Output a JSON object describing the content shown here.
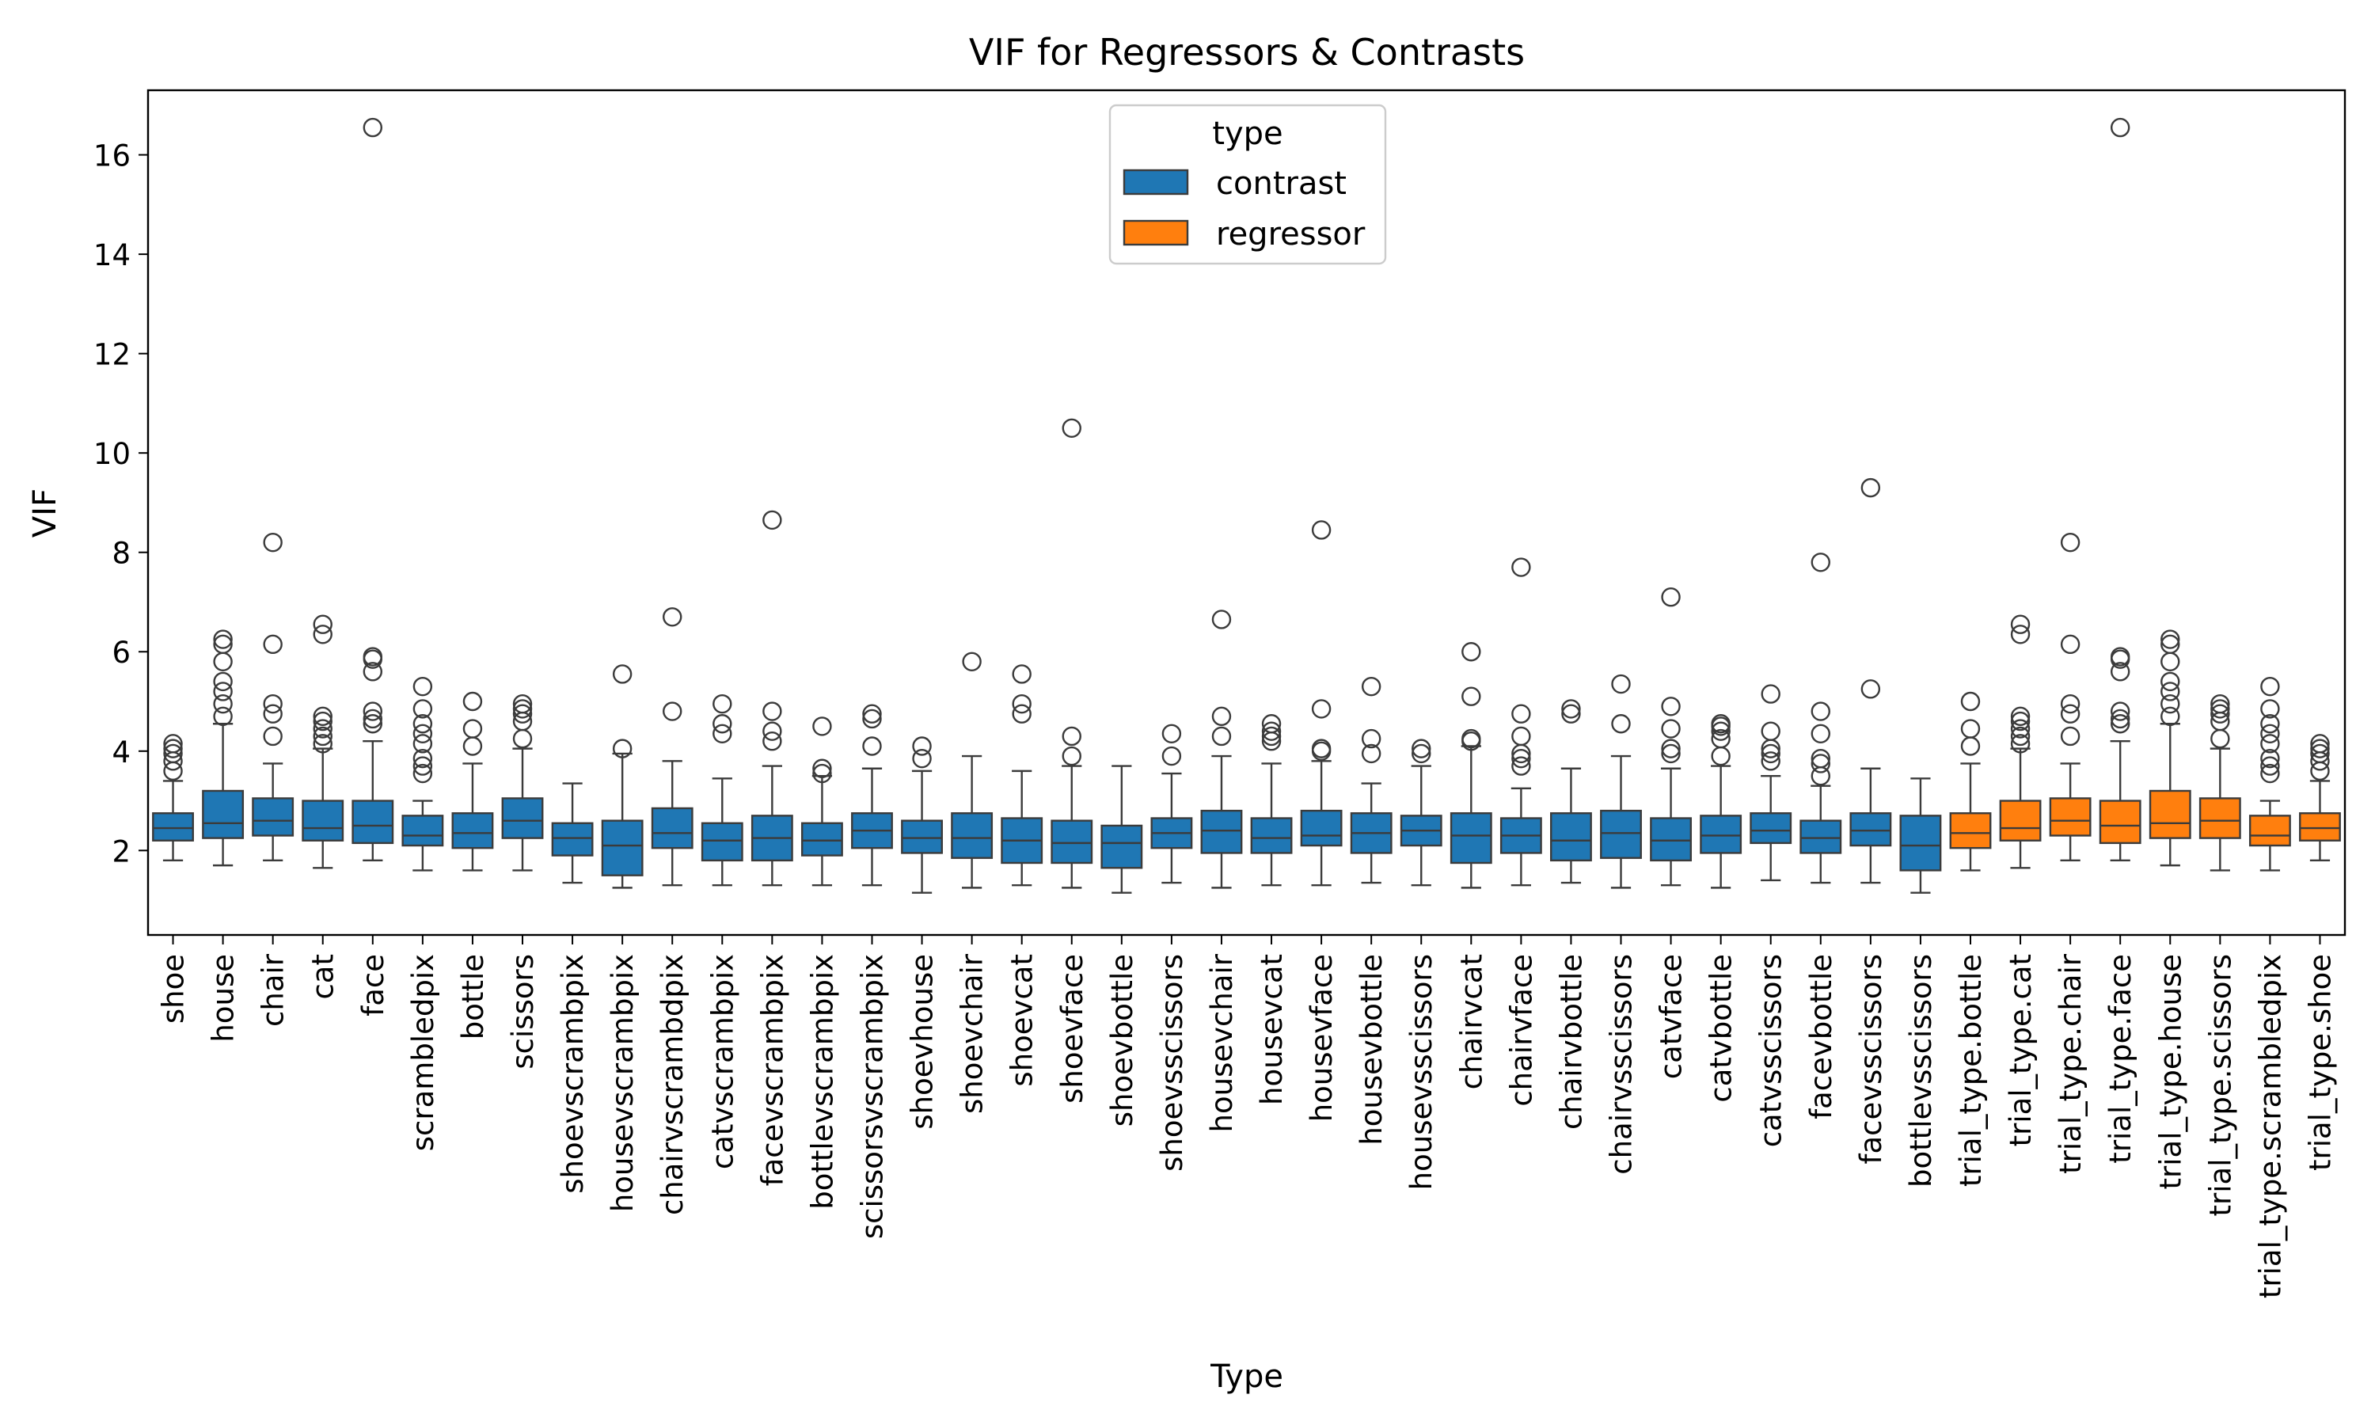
{
  "chart_data": {
    "type": "boxplot",
    "title": "VIF for Regressors & Contrasts",
    "xlabel": "Type",
    "ylabel": "VIF",
    "ylim": [
      0.3,
      17.3
    ],
    "yticks": [
      2,
      4,
      6,
      8,
      10,
      12,
      14,
      16
    ],
    "grid": false,
    "legend": {
      "title": "type",
      "placement": "top-center",
      "entries": [
        {
          "label": "contrast",
          "color": "#1f77b4"
        },
        {
          "label": "regressor",
          "color": "#ff7f0e"
        }
      ]
    },
    "categories": [
      {
        "name": "shoe",
        "type": "contrast",
        "q1": 2.2,
        "median": 2.45,
        "q3": 2.75,
        "whisker_low": 1.8,
        "whisker_high": 3.4,
        "outliers": [
          3.6,
          3.8,
          3.95,
          4.05,
          4.15
        ]
      },
      {
        "name": "house",
        "type": "contrast",
        "q1": 2.25,
        "median": 2.55,
        "q3": 3.2,
        "whisker_low": 1.7,
        "whisker_high": 4.55,
        "outliers": [
          4.7,
          4.95,
          5.2,
          5.4,
          5.8,
          6.15,
          6.25
        ]
      },
      {
        "name": "chair",
        "type": "contrast",
        "q1": 2.3,
        "median": 2.6,
        "q3": 3.05,
        "whisker_low": 1.8,
        "whisker_high": 3.75,
        "outliers": [
          4.3,
          4.75,
          4.95,
          6.15,
          8.2
        ]
      },
      {
        "name": "cat",
        "type": "contrast",
        "q1": 2.2,
        "median": 2.45,
        "q3": 3.0,
        "whisker_low": 1.65,
        "whisker_high": 4.05,
        "outliers": [
          4.15,
          4.3,
          4.45,
          4.6,
          4.7,
          6.35,
          6.55
        ]
      },
      {
        "name": "face",
        "type": "contrast",
        "q1": 2.15,
        "median": 2.5,
        "q3": 3.0,
        "whisker_low": 1.8,
        "whisker_high": 4.2,
        "outliers": [
          4.55,
          4.65,
          4.8,
          5.6,
          5.85,
          5.9,
          16.55
        ]
      },
      {
        "name": "scrambledpix",
        "type": "contrast",
        "q1": 2.1,
        "median": 2.3,
        "q3": 2.7,
        "whisker_low": 1.6,
        "whisker_high": 3.0,
        "outliers": [
          3.55,
          3.7,
          3.85,
          4.15,
          4.35,
          4.55,
          4.85,
          5.3
        ]
      },
      {
        "name": "bottle",
        "type": "contrast",
        "q1": 2.05,
        "median": 2.35,
        "q3": 2.75,
        "whisker_low": 1.6,
        "whisker_high": 3.75,
        "outliers": [
          4.1,
          4.45,
          5.0
        ]
      },
      {
        "name": "scissors",
        "type": "contrast",
        "q1": 2.25,
        "median": 2.6,
        "q3": 3.05,
        "whisker_low": 1.6,
        "whisker_high": 4.05,
        "outliers": [
          4.25,
          4.6,
          4.75,
          4.85,
          4.95
        ]
      },
      {
        "name": "shoevscrambpix",
        "type": "contrast",
        "q1": 1.9,
        "median": 2.25,
        "q3": 2.55,
        "whisker_low": 1.35,
        "whisker_high": 3.35,
        "outliers": []
      },
      {
        "name": "housevscrambpix",
        "type": "contrast",
        "q1": 1.5,
        "median": 2.1,
        "q3": 2.6,
        "whisker_low": 1.25,
        "whisker_high": 3.95,
        "outliers": [
          4.05,
          5.55
        ]
      },
      {
        "name": "chairvscrambdpix",
        "type": "contrast",
        "q1": 2.05,
        "median": 2.35,
        "q3": 2.85,
        "whisker_low": 1.3,
        "whisker_high": 3.8,
        "outliers": [
          4.8,
          6.7
        ]
      },
      {
        "name": "catvscrambpix",
        "type": "contrast",
        "q1": 1.8,
        "median": 2.2,
        "q3": 2.55,
        "whisker_low": 1.3,
        "whisker_high": 3.45,
        "outliers": [
          4.35,
          4.55,
          4.95
        ]
      },
      {
        "name": "facevscrambpix",
        "type": "contrast",
        "q1": 1.8,
        "median": 2.25,
        "q3": 2.7,
        "whisker_low": 1.3,
        "whisker_high": 3.7,
        "outliers": [
          4.2,
          4.4,
          4.8,
          8.65
        ]
      },
      {
        "name": "bottlevscrambpix",
        "type": "contrast",
        "q1": 1.9,
        "median": 2.2,
        "q3": 2.55,
        "whisker_low": 1.3,
        "whisker_high": 3.5,
        "outliers": [
          3.55,
          3.65,
          4.5
        ]
      },
      {
        "name": "scissorsvscrambpix",
        "type": "contrast",
        "q1": 2.05,
        "median": 2.4,
        "q3": 2.75,
        "whisker_low": 1.3,
        "whisker_high": 3.65,
        "outliers": [
          4.1,
          4.65,
          4.75
        ]
      },
      {
        "name": "shoevhouse",
        "type": "contrast",
        "q1": 1.95,
        "median": 2.25,
        "q3": 2.6,
        "whisker_low": 1.15,
        "whisker_high": 3.6,
        "outliers": [
          3.85,
          4.1
        ]
      },
      {
        "name": "shoevchair",
        "type": "contrast",
        "q1": 1.85,
        "median": 2.25,
        "q3": 2.75,
        "whisker_low": 1.25,
        "whisker_high": 3.9,
        "outliers": [
          5.8
        ]
      },
      {
        "name": "shoevcat",
        "type": "contrast",
        "q1": 1.75,
        "median": 2.2,
        "q3": 2.65,
        "whisker_low": 1.3,
        "whisker_high": 3.6,
        "outliers": [
          4.75,
          4.95,
          5.55
        ]
      },
      {
        "name": "shoevface",
        "type": "contrast",
        "q1": 1.75,
        "median": 2.15,
        "q3": 2.6,
        "whisker_low": 1.25,
        "whisker_high": 3.7,
        "outliers": [
          3.9,
          4.3,
          10.5
        ]
      },
      {
        "name": "shoevbottle",
        "type": "contrast",
        "q1": 1.65,
        "median": 2.15,
        "q3": 2.5,
        "whisker_low": 1.15,
        "whisker_high": 3.7,
        "outliers": []
      },
      {
        "name": "shoevsscissors",
        "type": "contrast",
        "q1": 2.05,
        "median": 2.35,
        "q3": 2.65,
        "whisker_low": 1.35,
        "whisker_high": 3.55,
        "outliers": [
          3.9,
          4.35
        ]
      },
      {
        "name": "housevchair",
        "type": "contrast",
        "q1": 1.95,
        "median": 2.4,
        "q3": 2.8,
        "whisker_low": 1.25,
        "whisker_high": 3.9,
        "outliers": [
          4.3,
          4.7,
          6.65
        ]
      },
      {
        "name": "housevcat",
        "type": "contrast",
        "q1": 1.95,
        "median": 2.25,
        "q3": 2.65,
        "whisker_low": 1.3,
        "whisker_high": 3.75,
        "outliers": [
          4.2,
          4.3,
          4.4,
          4.55
        ]
      },
      {
        "name": "housevface",
        "type": "contrast",
        "q1": 2.1,
        "median": 2.3,
        "q3": 2.8,
        "whisker_low": 1.3,
        "whisker_high": 3.8,
        "outliers": [
          4.0,
          4.05,
          4.85,
          8.45
        ]
      },
      {
        "name": "housevbottle",
        "type": "contrast",
        "q1": 1.95,
        "median": 2.35,
        "q3": 2.75,
        "whisker_low": 1.35,
        "whisker_high": 3.35,
        "outliers": [
          3.95,
          4.25,
          5.3
        ]
      },
      {
        "name": "housevsscissors",
        "type": "contrast",
        "q1": 2.1,
        "median": 2.4,
        "q3": 2.7,
        "whisker_low": 1.3,
        "whisker_high": 3.7,
        "outliers": [
          3.95,
          4.05
        ]
      },
      {
        "name": "chairvcat",
        "type": "contrast",
        "q1": 1.75,
        "median": 2.3,
        "q3": 2.75,
        "whisker_low": 1.25,
        "whisker_high": 4.1,
        "outliers": [
          4.2,
          4.25,
          5.1,
          6.0
        ]
      },
      {
        "name": "chairvface",
        "type": "contrast",
        "q1": 1.95,
        "median": 2.3,
        "q3": 2.65,
        "whisker_low": 1.3,
        "whisker_high": 3.25,
        "outliers": [
          3.7,
          3.85,
          3.95,
          4.3,
          4.75,
          7.7
        ]
      },
      {
        "name": "chairvbottle",
        "type": "contrast",
        "q1": 1.8,
        "median": 2.2,
        "q3": 2.75,
        "whisker_low": 1.35,
        "whisker_high": 3.65,
        "outliers": [
          4.75,
          4.85
        ]
      },
      {
        "name": "chairvsscissors",
        "type": "contrast",
        "q1": 1.85,
        "median": 2.35,
        "q3": 2.8,
        "whisker_low": 1.25,
        "whisker_high": 3.9,
        "outliers": [
          4.55,
          5.35
        ]
      },
      {
        "name": "catvface",
        "type": "contrast",
        "q1": 1.8,
        "median": 2.2,
        "q3": 2.65,
        "whisker_low": 1.3,
        "whisker_high": 3.65,
        "outliers": [
          3.95,
          4.05,
          4.45,
          4.9,
          7.1
        ]
      },
      {
        "name": "catvbottle",
        "type": "contrast",
        "q1": 1.95,
        "median": 2.3,
        "q3": 2.7,
        "whisker_low": 1.25,
        "whisker_high": 3.7,
        "outliers": [
          3.9,
          4.25,
          4.4,
          4.5,
          4.55
        ]
      },
      {
        "name": "catvsscissors",
        "type": "contrast",
        "q1": 2.15,
        "median": 2.4,
        "q3": 2.75,
        "whisker_low": 1.4,
        "whisker_high": 3.5,
        "outliers": [
          3.8,
          3.95,
          4.05,
          4.4,
          5.15
        ]
      },
      {
        "name": "facevbottle",
        "type": "contrast",
        "q1": 1.95,
        "median": 2.25,
        "q3": 2.6,
        "whisker_low": 1.35,
        "whisker_high": 3.3,
        "outliers": [
          3.5,
          3.75,
          3.85,
          4.35,
          4.8,
          7.8
        ]
      },
      {
        "name": "facevsscissors",
        "type": "contrast",
        "q1": 2.1,
        "median": 2.4,
        "q3": 2.75,
        "whisker_low": 1.35,
        "whisker_high": 3.65,
        "outliers": [
          5.25,
          9.3
        ]
      },
      {
        "name": "bottlevsscissors",
        "type": "contrast",
        "q1": 1.6,
        "median": 2.1,
        "q3": 2.7,
        "whisker_low": 1.15,
        "whisker_high": 3.45,
        "outliers": []
      },
      {
        "name": "trial_type.bottle",
        "type": "regressor",
        "q1": 2.05,
        "median": 2.35,
        "q3": 2.75,
        "whisker_low": 1.6,
        "whisker_high": 3.75,
        "outliers": [
          4.1,
          4.45,
          5.0
        ]
      },
      {
        "name": "trial_type.cat",
        "type": "regressor",
        "q1": 2.2,
        "median": 2.45,
        "q3": 3.0,
        "whisker_low": 1.65,
        "whisker_high": 4.05,
        "outliers": [
          4.15,
          4.3,
          4.45,
          4.6,
          4.7,
          6.35,
          6.55
        ]
      },
      {
        "name": "trial_type.chair",
        "type": "regressor",
        "q1": 2.3,
        "median": 2.6,
        "q3": 3.05,
        "whisker_low": 1.8,
        "whisker_high": 3.75,
        "outliers": [
          4.3,
          4.75,
          4.95,
          6.15,
          8.2
        ]
      },
      {
        "name": "trial_type.face",
        "type": "regressor",
        "q1": 2.15,
        "median": 2.5,
        "q3": 3.0,
        "whisker_low": 1.8,
        "whisker_high": 4.2,
        "outliers": [
          4.55,
          4.65,
          4.8,
          5.6,
          5.85,
          5.9,
          16.55
        ]
      },
      {
        "name": "trial_type.house",
        "type": "regressor",
        "q1": 2.25,
        "median": 2.55,
        "q3": 3.2,
        "whisker_low": 1.7,
        "whisker_high": 4.55,
        "outliers": [
          4.7,
          4.95,
          5.2,
          5.4,
          5.8,
          6.15,
          6.25
        ]
      },
      {
        "name": "trial_type.scissors",
        "type": "regressor",
        "q1": 2.25,
        "median": 2.6,
        "q3": 3.05,
        "whisker_low": 1.6,
        "whisker_high": 4.05,
        "outliers": [
          4.25,
          4.6,
          4.75,
          4.85,
          4.95
        ]
      },
      {
        "name": "trial_type.scrambledpix",
        "type": "regressor",
        "q1": 2.1,
        "median": 2.3,
        "q3": 2.7,
        "whisker_low": 1.6,
        "whisker_high": 3.0,
        "outliers": [
          3.55,
          3.7,
          3.85,
          4.15,
          4.35,
          4.55,
          4.85,
          5.3
        ]
      },
      {
        "name": "trial_type.shoe",
        "type": "regressor",
        "q1": 2.2,
        "median": 2.45,
        "q3": 2.75,
        "whisker_low": 1.8,
        "whisker_high": 3.4,
        "outliers": [
          3.6,
          3.8,
          3.95,
          4.05,
          4.15
        ]
      }
    ]
  }
}
